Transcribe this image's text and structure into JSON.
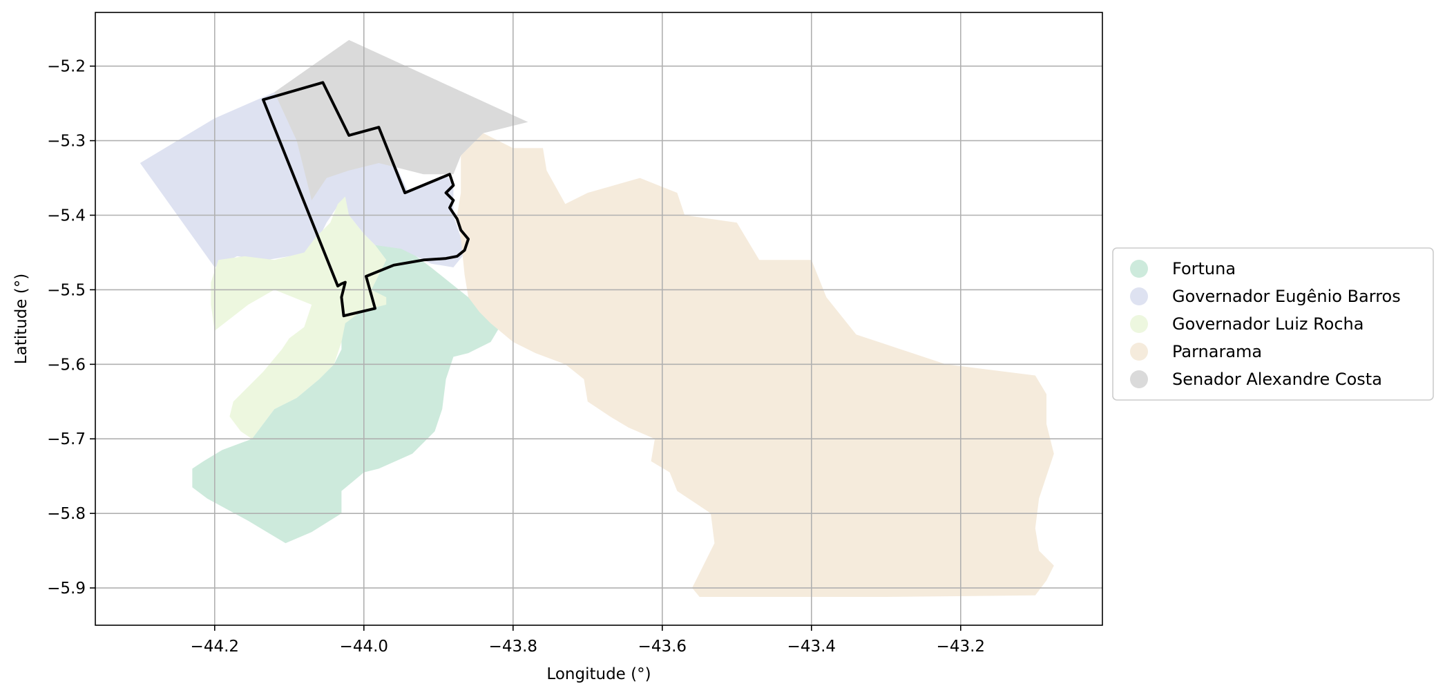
{
  "chart_data": {
    "type": "map",
    "xlabel": "Longitude (°)",
    "ylabel": "Latitude (°)",
    "xlim": [
      -44.36,
      -43.01
    ],
    "ylim": [
      -5.95,
      -5.128
    ],
    "xticks": [
      -44.2,
      -44.0,
      -43.8,
      -43.6,
      -43.4,
      -43.2
    ],
    "yticks": [
      -5.2,
      -5.3,
      -5.4,
      -5.5,
      -5.6,
      -5.7,
      -5.8,
      -5.9
    ],
    "xtick_labels": [
      "−44.2",
      "−44.0",
      "−43.8",
      "−43.6",
      "−43.4",
      "−43.2"
    ],
    "ytick_labels": [
      "−5.2",
      "−5.3",
      "−5.4",
      "−5.5",
      "−5.6",
      "−5.7",
      "−5.8",
      "−5.9"
    ],
    "grid": true,
    "legend_position": "center-right outside",
    "outline_color": "#000000",
    "regions": [
      {
        "name": "Fortuna",
        "color": "#cdeadc",
        "polygon": [
          [
            -44.0,
            -5.42
          ],
          [
            -43.95,
            -5.44
          ],
          [
            -43.91,
            -5.47
          ],
          [
            -43.885,
            -5.49
          ],
          [
            -43.86,
            -5.51
          ],
          [
            -43.83,
            -5.53
          ],
          [
            -43.815,
            -5.545
          ],
          [
            -43.83,
            -5.57
          ],
          [
            -43.86,
            -5.585
          ],
          [
            -43.88,
            -5.59
          ],
          [
            -43.89,
            -5.62
          ],
          [
            -43.895,
            -5.66
          ],
          [
            -43.905,
            -5.69
          ],
          [
            -43.935,
            -5.72
          ],
          [
            -43.98,
            -5.74
          ],
          [
            -44.0,
            -5.745
          ],
          [
            -44.03,
            -5.77
          ],
          [
            -44.03,
            -5.8
          ],
          [
            -44.07,
            -5.825
          ],
          [
            -44.105,
            -5.84
          ],
          [
            -44.155,
            -5.81
          ],
          [
            -44.21,
            -5.78
          ],
          [
            -44.23,
            -5.765
          ],
          [
            -44.23,
            -5.74
          ],
          [
            -44.215,
            -5.73
          ],
          [
            -44.19,
            -5.715
          ],
          [
            -44.15,
            -5.7
          ],
          [
            -44.135,
            -5.68
          ],
          [
            -44.12,
            -5.66
          ],
          [
            -44.09,
            -5.645
          ],
          [
            -44.06,
            -5.62
          ],
          [
            -44.04,
            -5.6
          ],
          [
            -44.03,
            -5.58
          ],
          [
            -44.03,
            -5.55
          ],
          [
            -44.02,
            -5.53
          ],
          [
            -44.0,
            -5.52
          ],
          [
            -43.99,
            -5.5
          ],
          [
            -43.98,
            -5.48
          ],
          [
            -43.97,
            -5.46
          ],
          [
            -43.985,
            -5.44
          ]
        ]
      },
      {
        "name": "Governador Eugênio Barros",
        "color": "#dee2f1",
        "polygon": [
          [
            -44.3,
            -5.33
          ],
          [
            -44.2,
            -5.27
          ],
          [
            -44.12,
            -5.235
          ],
          [
            -44.06,
            -5.23
          ],
          [
            -44.02,
            -5.3
          ],
          [
            -43.98,
            -5.285
          ],
          [
            -43.94,
            -5.37
          ],
          [
            -43.89,
            -5.345
          ],
          [
            -43.88,
            -5.36
          ],
          [
            -43.88,
            -5.4
          ],
          [
            -43.87,
            -5.43
          ],
          [
            -43.86,
            -5.445
          ],
          [
            -43.88,
            -5.47
          ],
          [
            -43.91,
            -5.465
          ],
          [
            -43.95,
            -5.445
          ],
          [
            -43.985,
            -5.44
          ],
          [
            -44.0,
            -5.425
          ],
          [
            -44.02,
            -5.4
          ],
          [
            -44.03,
            -5.38
          ],
          [
            -44.05,
            -5.41
          ],
          [
            -44.06,
            -5.43
          ],
          [
            -44.07,
            -5.45
          ],
          [
            -44.1,
            -5.455
          ],
          [
            -44.13,
            -5.46
          ],
          [
            -44.17,
            -5.455
          ],
          [
            -44.2,
            -5.47
          ]
        ]
      },
      {
        "name": "Governador Luiz Rocha",
        "color": "#edf7df",
        "polygon": [
          [
            -44.025,
            -5.375
          ],
          [
            -44.02,
            -5.4
          ],
          [
            -44.0,
            -5.425
          ],
          [
            -43.985,
            -5.44
          ],
          [
            -43.97,
            -5.46
          ],
          [
            -43.98,
            -5.48
          ],
          [
            -43.99,
            -5.5
          ],
          [
            -43.97,
            -5.51
          ],
          [
            -43.97,
            -5.52
          ],
          [
            -43.99,
            -5.525
          ],
          [
            -44.005,
            -5.53
          ],
          [
            -44.025,
            -5.545
          ],
          [
            -44.03,
            -5.57
          ],
          [
            -44.04,
            -5.6
          ],
          [
            -44.06,
            -5.62
          ],
          [
            -44.09,
            -5.645
          ],
          [
            -44.12,
            -5.66
          ],
          [
            -44.135,
            -5.68
          ],
          [
            -44.15,
            -5.7
          ],
          [
            -44.165,
            -5.69
          ],
          [
            -44.18,
            -5.67
          ],
          [
            -44.175,
            -5.65
          ],
          [
            -44.155,
            -5.63
          ],
          [
            -44.135,
            -5.61
          ],
          [
            -44.11,
            -5.58
          ],
          [
            -44.1,
            -5.565
          ],
          [
            -44.08,
            -5.55
          ],
          [
            -44.07,
            -5.52
          ],
          [
            -44.12,
            -5.5
          ],
          [
            -44.155,
            -5.52
          ],
          [
            -44.2,
            -5.555
          ],
          [
            -44.205,
            -5.52
          ],
          [
            -44.205,
            -5.49
          ],
          [
            -44.195,
            -5.46
          ],
          [
            -44.16,
            -5.455
          ],
          [
            -44.12,
            -5.46
          ],
          [
            -44.08,
            -5.45
          ],
          [
            -44.065,
            -5.43
          ],
          [
            -44.045,
            -5.41
          ],
          [
            -44.035,
            -5.385
          ]
        ]
      },
      {
        "name": "Parnarama",
        "color": "#f5ebdc",
        "polygon": [
          [
            -43.87,
            -5.32
          ],
          [
            -43.84,
            -5.29
          ],
          [
            -43.8,
            -5.31
          ],
          [
            -43.76,
            -5.31
          ],
          [
            -43.755,
            -5.34
          ],
          [
            -43.73,
            -5.385
          ],
          [
            -43.7,
            -5.37
          ],
          [
            -43.63,
            -5.35
          ],
          [
            -43.58,
            -5.37
          ],
          [
            -43.57,
            -5.4
          ],
          [
            -43.5,
            -5.41
          ],
          [
            -43.47,
            -5.46
          ],
          [
            -43.4,
            -5.46
          ],
          [
            -43.38,
            -5.51
          ],
          [
            -43.34,
            -5.56
          ],
          [
            -43.28,
            -5.58
          ],
          [
            -43.22,
            -5.6
          ],
          [
            -43.1,
            -5.615
          ],
          [
            -43.085,
            -5.64
          ],
          [
            -43.085,
            -5.68
          ],
          [
            -43.075,
            -5.72
          ],
          [
            -43.095,
            -5.78
          ],
          [
            -43.1,
            -5.82
          ],
          [
            -43.095,
            -5.85
          ],
          [
            -43.075,
            -5.87
          ],
          [
            -43.085,
            -5.89
          ],
          [
            -43.1,
            -5.91
          ],
          [
            -43.3,
            -5.912
          ],
          [
            -43.55,
            -5.912
          ],
          [
            -43.56,
            -5.9
          ],
          [
            -43.55,
            -5.88
          ],
          [
            -43.54,
            -5.86
          ],
          [
            -43.53,
            -5.84
          ],
          [
            -43.535,
            -5.8
          ],
          [
            -43.55,
            -5.79
          ],
          [
            -43.58,
            -5.77
          ],
          [
            -43.59,
            -5.745
          ],
          [
            -43.615,
            -5.73
          ],
          [
            -43.61,
            -5.7
          ],
          [
            -43.645,
            -5.685
          ],
          [
            -43.67,
            -5.67
          ],
          [
            -43.7,
            -5.65
          ],
          [
            -43.705,
            -5.62
          ],
          [
            -43.73,
            -5.6
          ],
          [
            -43.77,
            -5.585
          ],
          [
            -43.8,
            -5.57
          ],
          [
            -43.83,
            -5.545
          ],
          [
            -43.845,
            -5.53
          ],
          [
            -43.86,
            -5.51
          ],
          [
            -43.865,
            -5.48
          ],
          [
            -43.87,
            -5.43
          ],
          [
            -43.875,
            -5.4
          ],
          [
            -43.87,
            -5.37
          ],
          [
            -43.87,
            -5.34
          ]
        ]
      },
      {
        "name": "Senador Alexandre Costa",
        "color": "#dadada",
        "polygon": [
          [
            -44.12,
            -5.235
          ],
          [
            -44.02,
            -5.165
          ],
          [
            -43.78,
            -5.275
          ],
          [
            -43.84,
            -5.29
          ],
          [
            -43.87,
            -5.32
          ],
          [
            -43.88,
            -5.345
          ],
          [
            -43.89,
            -5.345
          ],
          [
            -43.92,
            -5.345
          ],
          [
            -43.96,
            -5.335
          ],
          [
            -43.98,
            -5.33
          ],
          [
            -44.02,
            -5.34
          ],
          [
            -44.05,
            -5.35
          ],
          [
            -44.07,
            -5.38
          ],
          [
            -44.09,
            -5.3
          ]
        ]
      }
    ],
    "highlight_outline": [
      [
        -44.135,
        -5.245
      ],
      [
        -44.055,
        -5.222
      ],
      [
        -44.02,
        -5.293
      ],
      [
        -43.98,
        -5.282
      ],
      [
        -43.945,
        -5.37
      ],
      [
        -43.885,
        -5.345
      ],
      [
        -43.88,
        -5.36
      ],
      [
        -43.89,
        -5.37
      ],
      [
        -43.88,
        -5.38
      ],
      [
        -43.885,
        -5.39
      ],
      [
        -43.875,
        -5.405
      ],
      [
        -43.87,
        -5.42
      ],
      [
        -43.86,
        -5.432
      ],
      [
        -43.865,
        -5.447
      ],
      [
        -43.875,
        -5.455
      ],
      [
        -43.89,
        -5.458
      ],
      [
        -43.92,
        -5.46
      ],
      [
        -43.96,
        -5.467
      ],
      [
        -43.997,
        -5.482
      ],
      [
        -43.99,
        -5.507
      ],
      [
        -43.985,
        -5.525
      ],
      [
        -44.027,
        -5.535
      ],
      [
        -44.03,
        -5.51
      ],
      [
        -44.025,
        -5.49
      ],
      [
        -44.03,
        -5.492
      ],
      [
        -44.035,
        -5.495
      ]
    ]
  }
}
